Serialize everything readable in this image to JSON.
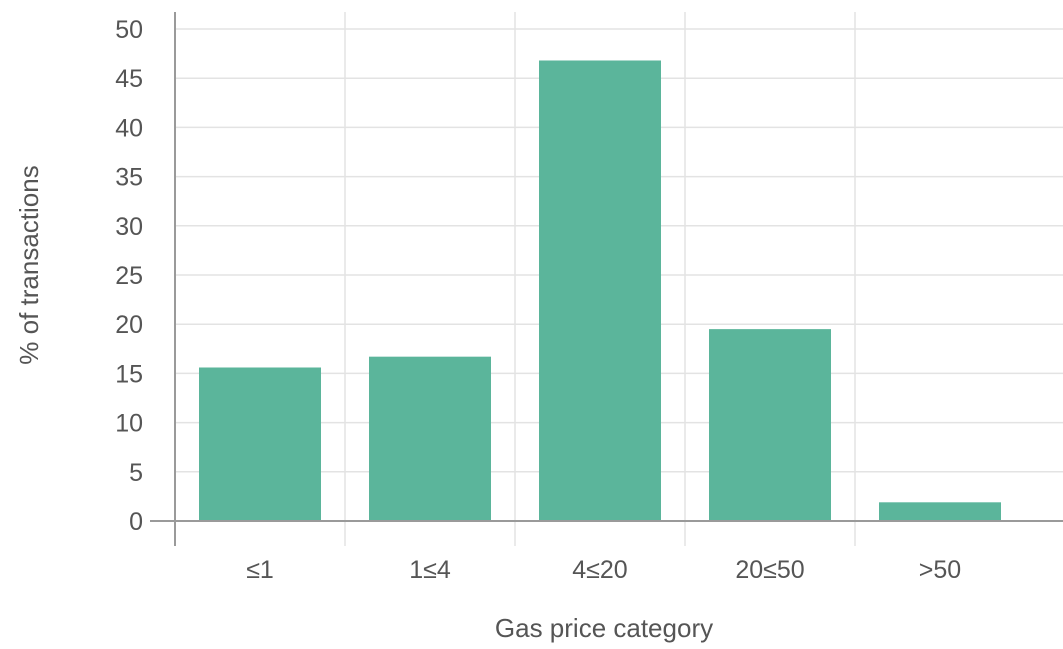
{
  "chart_data": {
    "type": "bar",
    "categories": [
      "≤1",
      "1≤4",
      "4≤20",
      "20≤50",
      ">50"
    ],
    "values": [
      15.6,
      16.7,
      46.8,
      19.5,
      1.9
    ],
    "title": "",
    "xlabel": "Gas price category",
    "ylabel": "% of transactions",
    "ylim": [
      0,
      50
    ],
    "yticks": [
      0,
      5,
      10,
      15,
      20,
      25,
      30,
      35,
      40,
      45,
      50
    ],
    "grid": true,
    "bar_color": "#5bb59b",
    "grid_color": "#e3e3e3",
    "axis_color": "#9a9a9a",
    "text_color": "#555555"
  }
}
